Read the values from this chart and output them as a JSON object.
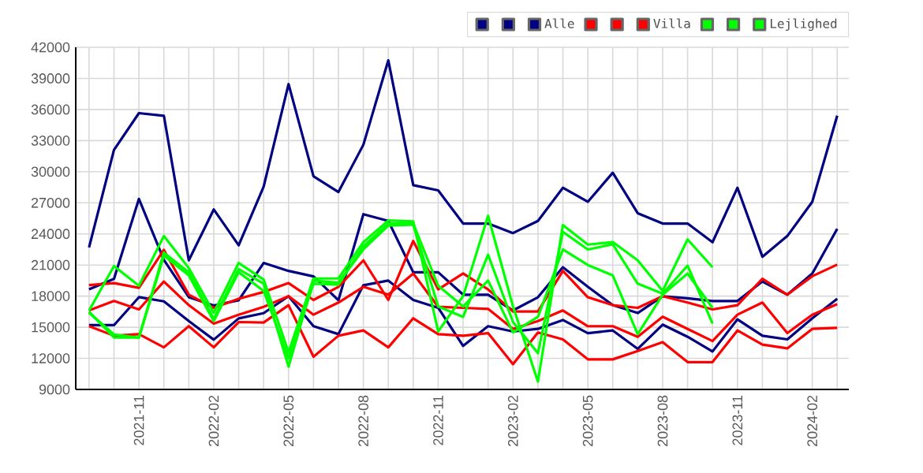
{
  "chart_data": {
    "type": "line",
    "x": [
      "2021-09",
      "2021-10",
      "2021-11",
      "2021-12",
      "2022-01",
      "2022-02",
      "2022-03",
      "2022-04",
      "2022-05",
      "2022-06",
      "2022-07",
      "2022-08",
      "2022-09",
      "2022-10",
      "2022-11",
      "2022-12",
      "2023-01",
      "2023-02",
      "2023-03",
      "2023-04",
      "2023-05",
      "2023-06",
      "2023-07",
      "2023-08",
      "2023-09",
      "2023-10",
      "2023-11",
      "2023-12",
      "2024-01",
      "2024-02",
      "2024-03"
    ],
    "series": [
      {
        "color": "#000080",
        "values": [
          22700,
          32100,
          35650,
          35400,
          21450,
          26360,
          22900,
          28550,
          38450,
          29560,
          28040,
          32600,
          40740,
          28700,
          28200,
          25000,
          25000,
          24080,
          25250,
          28450,
          27100,
          29900,
          26000,
          25000,
          25000,
          23200,
          28450,
          21800,
          23800,
          27100,
          35400
        ]
      },
      {
        "color": "#000080",
        "values": [
          18650,
          19670,
          27380,
          21500,
          17900,
          17100,
          17600,
          21200,
          20430,
          19900,
          17600,
          25900,
          25250,
          20300,
          20300,
          18140,
          18140,
          16620,
          17890,
          20790,
          18900,
          17130,
          16370,
          17990,
          17790,
          17530,
          17530,
          19410,
          18140,
          20180,
          24490
        ]
      },
      {
        "name": "Alle",
        "color": "#000080",
        "values": [
          15200,
          15200,
          17900,
          17500,
          15600,
          13800,
          15850,
          16360,
          17990,
          15100,
          14330,
          19050,
          19500,
          17630,
          16870,
          13200,
          15100,
          14590,
          14840,
          15700,
          14430,
          14690,
          12910,
          15250,
          14080,
          12660,
          15760,
          14180,
          13830,
          15860,
          17740
        ]
      },
      {
        "color": "#ff0000",
        "values": [
          19060,
          19260,
          18800,
          22460,
          18140,
          16870,
          17740,
          18400,
          19260,
          17630,
          18900,
          21450,
          17630,
          23320,
          18650,
          20180,
          18650,
          16520,
          16520,
          20430,
          17890,
          17130,
          16870,
          17990,
          17380,
          16720,
          17130,
          19670,
          18140,
          19920,
          21040
        ]
      },
      {
        "color": "#ff0000",
        "values": [
          16620,
          17530,
          16720,
          19410,
          17130,
          15350,
          16210,
          16970,
          17990,
          16210,
          17380,
          18900,
          18140,
          20180,
          16970,
          16870,
          16770,
          14840,
          15600,
          16620,
          15100,
          15100,
          14080,
          16010,
          14840,
          13670,
          16210,
          17380,
          14430,
          16210,
          17230
        ]
      },
      {
        "name": "Villa",
        "color": "#ff0000",
        "values": [
          15100,
          14180,
          14330,
          13060,
          15100,
          13060,
          15500,
          15450,
          17130,
          12150,
          14180,
          14690,
          13060,
          15860,
          14330,
          14180,
          14430,
          11440,
          14490,
          13830,
          11900,
          11900,
          12710,
          13570,
          11640,
          11640,
          14690,
          13320,
          12960,
          14840,
          14940
        ]
      },
      {
        "color": "#00ff00",
        "values": [
          16600,
          20900,
          19000,
          23800,
          20700,
          16400,
          21200,
          19600,
          12600,
          19700,
          19700,
          23200,
          25300,
          25200,
          14600,
          18000,
          25750,
          17000,
          9760,
          24850,
          22970,
          23220,
          21450,
          18500,
          23470,
          20790,
          null,
          null,
          null,
          null,
          null
        ]
      },
      {
        "color": "#00ff00",
        "values": [
          16400,
          14300,
          14000,
          22200,
          20300,
          15800,
          20600,
          19200,
          11200,
          19500,
          19300,
          22500,
          24800,
          24900,
          17000,
          16000,
          22000,
          15500,
          12500,
          24200,
          22500,
          23000,
          19200,
          18240,
          20940,
          15350,
          null,
          null,
          null,
          null,
          null
        ]
      },
      {
        "name": "Lejlighed",
        "color": "#00ff00",
        "values": [
          16500,
          14000,
          14000,
          21900,
          20000,
          15600,
          20300,
          18500,
          12000,
          19200,
          19100,
          22800,
          25000,
          25000,
          19000,
          17000,
          19500,
          14500,
          16000,
          22500,
          21000,
          20000,
          14330,
          18140,
          20180,
          16870,
          null,
          null,
          null,
          null,
          null
        ]
      }
    ],
    "xlim": [
      "2021-08-15",
      "2024-03-15"
    ],
    "xticks": [
      {
        "value": "2021-09",
        "label": null
      },
      {
        "value": "2021-10",
        "label": null
      },
      {
        "value": "2021-11",
        "label": "2021-11"
      },
      {
        "value": "2021-12",
        "label": null
      },
      {
        "value": "2022-01",
        "label": null
      },
      {
        "value": "2022-02",
        "label": "2022-02"
      },
      {
        "value": "2022-03",
        "label": null
      },
      {
        "value": "2022-04",
        "label": null
      },
      {
        "value": "2022-05",
        "label": "2022-05"
      },
      {
        "value": "2022-06",
        "label": null
      },
      {
        "value": "2022-07",
        "label": null
      },
      {
        "value": "2022-08",
        "label": "2022-08"
      },
      {
        "value": "2022-09",
        "label": null
      },
      {
        "value": "2022-10",
        "label": null
      },
      {
        "value": "2022-11",
        "label": "2022-11"
      },
      {
        "value": "2022-12",
        "label": null
      },
      {
        "value": "2023-01",
        "label": null
      },
      {
        "value": "2023-02",
        "label": "2023-02"
      },
      {
        "value": "2023-03",
        "label": null
      },
      {
        "value": "2023-04",
        "label": null
      },
      {
        "value": "2023-05",
        "label": "2023-05"
      },
      {
        "value": "2023-06",
        "label": null
      },
      {
        "value": "2023-07",
        "label": null
      },
      {
        "value": "2023-08",
        "label": "2023-08"
      },
      {
        "value": "2023-09",
        "label": null
      },
      {
        "value": "2023-10",
        "label": null
      },
      {
        "value": "2023-11",
        "label": "2023-11"
      },
      {
        "value": "2023-12",
        "label": null
      },
      {
        "value": "2024-01",
        "label": null
      },
      {
        "value": "2024-02",
        "label": "2024-02"
      },
      {
        "value": "2024-03",
        "label": null
      }
    ],
    "ylim": [
      9000,
      42000
    ],
    "yticks": [
      9000,
      12000,
      15000,
      18000,
      21000,
      24000,
      27000,
      30000,
      33000,
      36000,
      39000,
      42000
    ],
    "grid": true,
    "legend": "top right"
  }
}
